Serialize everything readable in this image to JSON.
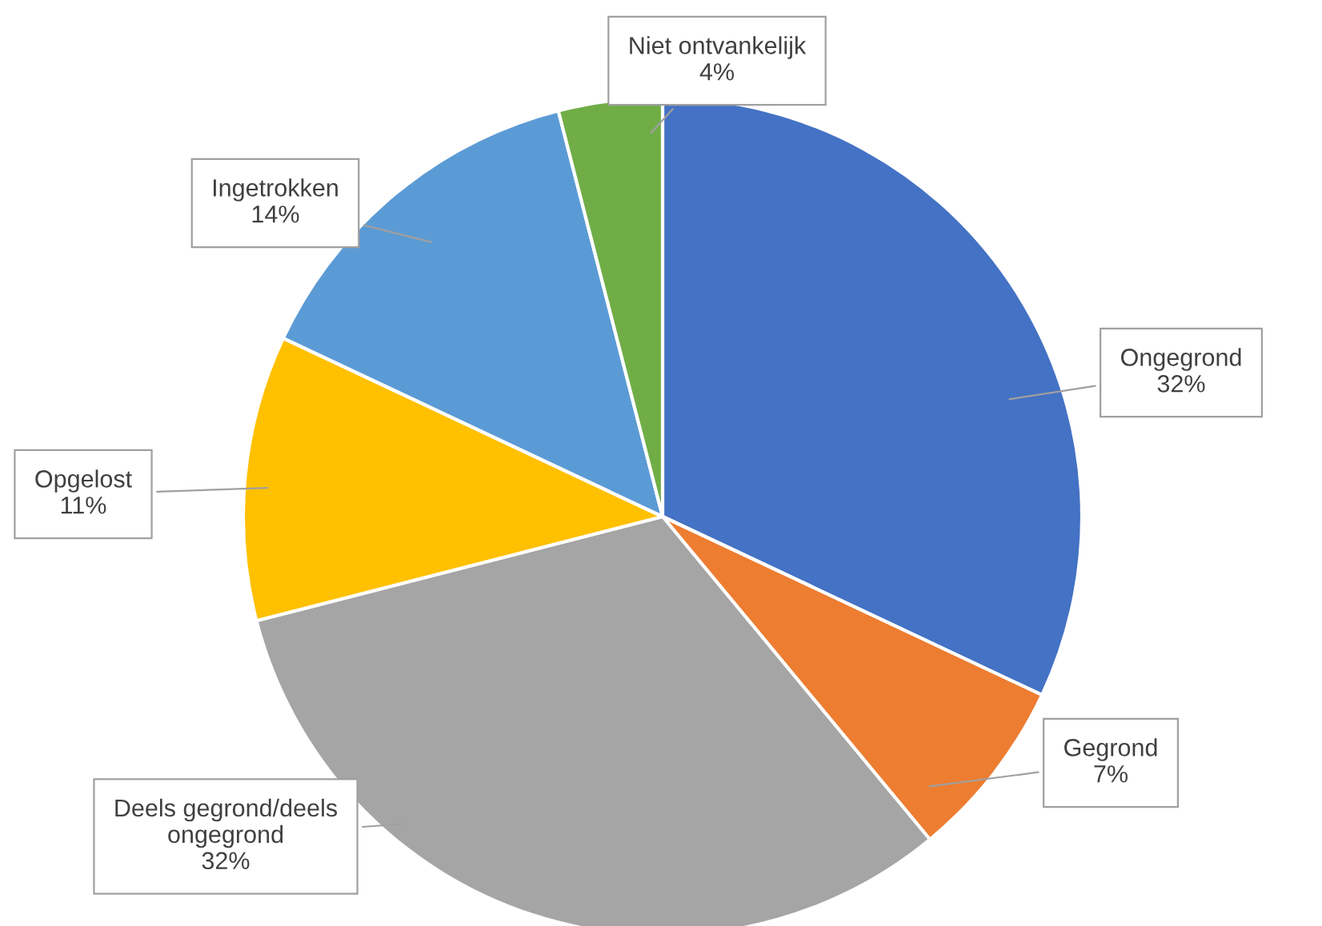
{
  "chart_data": {
    "type": "pie",
    "categories": [
      "Ongegrond",
      "Gegrond",
      "Deels gegrond/deels ongegrond",
      "Opgelost",
      "Ingetrokken",
      "Niet ontvankelijk"
    ],
    "values": [
      32,
      7,
      32,
      11,
      14,
      4
    ],
    "value_labels": [
      "32%",
      "7%",
      "32%",
      "11%",
      "14%",
      "4%"
    ],
    "colors": [
      "#4472c4",
      "#ed7d31",
      "#a5a5a5",
      "#ffc000",
      "#5b9bd5",
      "#70ad47"
    ],
    "legend": false
  }
}
